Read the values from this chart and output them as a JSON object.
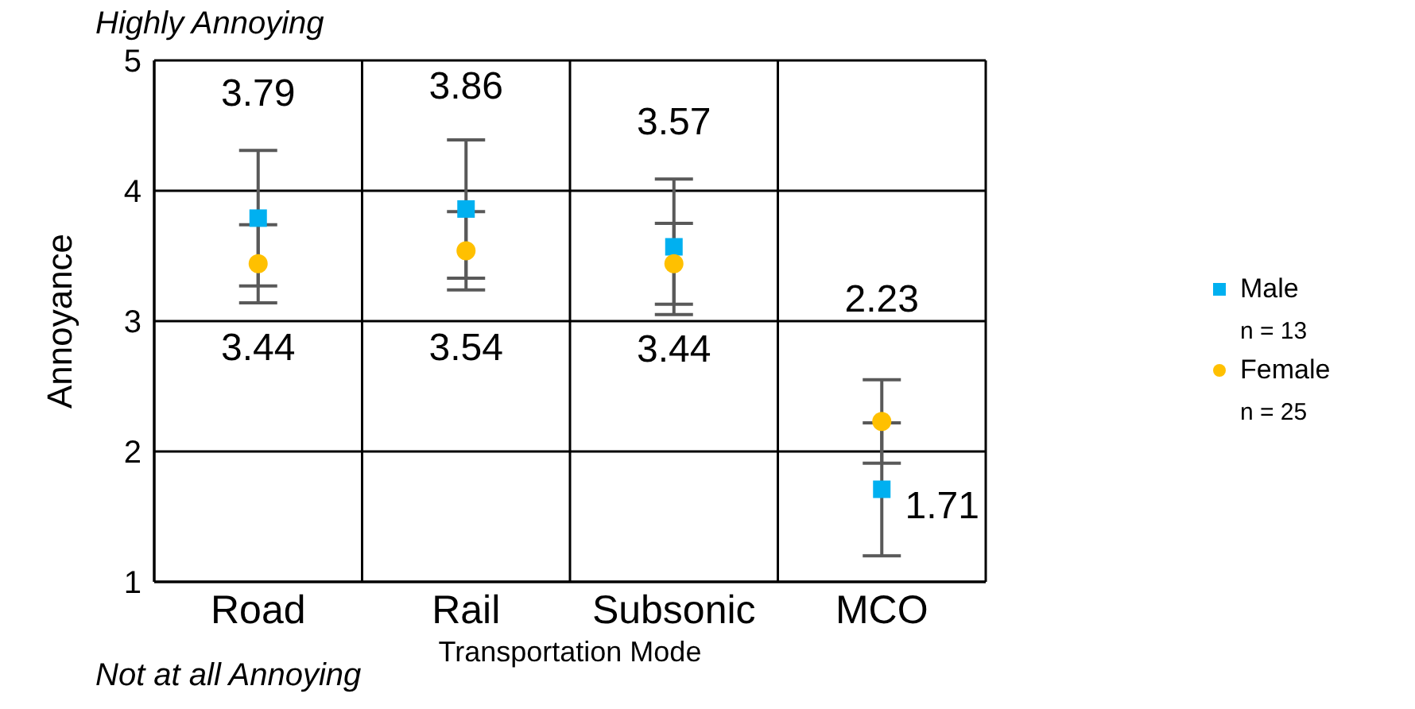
{
  "chart_data": {
    "type": "scatter",
    "xlabel": "Transportation Mode",
    "ylabel": "Annoyance",
    "categories": [
      "Road",
      "Rail",
      "Subsonic",
      "MCO"
    ],
    "series": [
      {
        "name": "Male",
        "color": "#00b0f0",
        "marker": "square",
        "values": [
          3.79,
          3.86,
          3.57,
          1.71
        ],
        "errors": [
          0.52,
          0.53,
          0.52,
          0.51
        ]
      },
      {
        "name": "Female",
        "color": "#ffc000",
        "marker": "circle",
        "values": [
          3.44,
          3.54,
          3.44,
          2.23
        ],
        "errors": [
          0.3,
          0.3,
          0.31,
          0.32
        ]
      }
    ],
    "ylim": [
      1,
      5
    ],
    "yticks": [
      1,
      2,
      3,
      4,
      5
    ],
    "grid": true,
    "legend": "right",
    "data_labels": true,
    "annotations": [
      "Highly Annoying",
      "Not at all Annoying",
      "n = 13",
      "n = 25"
    ]
  }
}
